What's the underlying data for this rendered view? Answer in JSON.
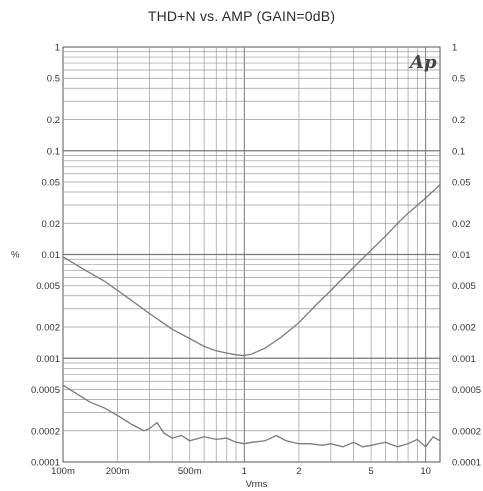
{
  "chart_data": {
    "type": "line",
    "title": "THD+N vs. AMP (GAIN=0dB)",
    "xlabel": "Vrms",
    "ylabel": "%",
    "x_scale": "log",
    "y_scale": "log",
    "xlim": [
      0.1,
      12
    ],
    "ylim": [
      0.0001,
      1
    ],
    "grid": true,
    "logo_text": "Ap",
    "x_ticks": [
      {
        "value": 0.1,
        "label": "100m"
      },
      {
        "value": 0.2,
        "label": "200m"
      },
      {
        "value": 0.5,
        "label": "500m"
      },
      {
        "value": 1,
        "label": "1"
      },
      {
        "value": 2,
        "label": "2"
      },
      {
        "value": 5,
        "label": "5"
      },
      {
        "value": 10,
        "label": "10"
      }
    ],
    "y_ticks": [
      {
        "value": 1,
        "label": "1"
      },
      {
        "value": 0.5,
        "label": "0.5"
      },
      {
        "value": 0.2,
        "label": "0.2"
      },
      {
        "value": 0.1,
        "label": "0.1"
      },
      {
        "value": 0.05,
        "label": "0.05"
      },
      {
        "value": 0.02,
        "label": "0.02"
      },
      {
        "value": 0.01,
        "label": "0.01"
      },
      {
        "value": 0.005,
        "label": "0.005"
      },
      {
        "value": 0.002,
        "label": "0.002"
      },
      {
        "value": 0.001,
        "label": "0.001"
      },
      {
        "value": 0.0005,
        "label": "0.0005"
      },
      {
        "value": 0.0002,
        "label": "0.0002"
      },
      {
        "value": 0.0001,
        "label": "0.0001"
      }
    ],
    "series": [
      {
        "color": "#7a7a7a",
        "x": [
          0.1,
          0.13,
          0.17,
          0.22,
          0.3,
          0.4,
          0.5,
          0.6,
          0.7,
          0.8,
          0.9,
          1.0,
          1.1,
          1.3,
          1.6,
          2.0,
          2.5,
          3.0,
          4.0,
          5.0,
          6.0,
          7.0,
          8.0,
          10.0,
          12.0
        ],
        "values": [
          0.0095,
          0.0072,
          0.0055,
          0.004,
          0.0027,
          0.0019,
          0.00155,
          0.0013,
          0.00118,
          0.00112,
          0.00108,
          0.00106,
          0.0011,
          0.00125,
          0.0016,
          0.0022,
          0.0033,
          0.0045,
          0.0075,
          0.011,
          0.015,
          0.02,
          0.025,
          0.035,
          0.047
        ]
      },
      {
        "color": "#7a7a7a",
        "x": [
          0.1,
          0.12,
          0.14,
          0.17,
          0.2,
          0.24,
          0.28,
          0.3,
          0.33,
          0.36,
          0.4,
          0.45,
          0.5,
          0.6,
          0.7,
          0.8,
          0.9,
          1.0,
          1.1,
          1.3,
          1.5,
          1.7,
          2.0,
          2.3,
          2.7,
          3.0,
          3.5,
          4.0,
          4.5,
          5.0,
          6.0,
          7.0,
          8.0,
          9.0,
          10.0,
          11.0,
          12.0
        ],
        "values": [
          0.00055,
          0.00045,
          0.00038,
          0.00033,
          0.00028,
          0.00023,
          0.0002,
          0.00021,
          0.00024,
          0.00019,
          0.00017,
          0.00018,
          0.00016,
          0.000175,
          0.000165,
          0.00017,
          0.000155,
          0.00015,
          0.000155,
          0.00016,
          0.00018,
          0.00016,
          0.00015,
          0.00015,
          0.000145,
          0.00015,
          0.00014,
          0.000155,
          0.00014,
          0.000145,
          0.000155,
          0.00014,
          0.00015,
          0.000165,
          0.00014,
          0.000175,
          0.00016
        ]
      }
    ]
  }
}
